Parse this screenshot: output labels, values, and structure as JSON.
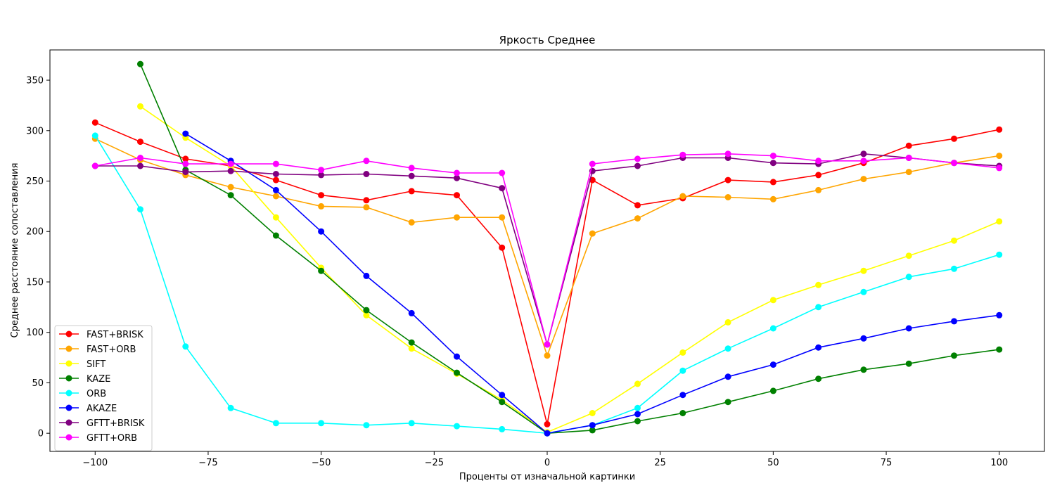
{
  "chart_data": {
    "type": "line",
    "title": "Яркость Среднее",
    "xlabel": "Проценты от изначальной картинки",
    "ylabel": "Среднее расстояние сопоставления",
    "xlim": [
      -110,
      110
    ],
    "ylim": [
      -18,
      380
    ],
    "xticks": [
      -100,
      -75,
      -50,
      -25,
      0,
      25,
      50,
      75,
      100
    ],
    "yticks": [
      0,
      50,
      100,
      150,
      200,
      250,
      300,
      350
    ],
    "grid": false,
    "legend_position": "lower-left",
    "x": [
      -100,
      -90,
      -80,
      -70,
      -60,
      -50,
      -40,
      -30,
      -20,
      -10,
      0,
      10,
      20,
      30,
      40,
      50,
      60,
      70,
      80,
      90,
      100
    ],
    "series": [
      {
        "name": "FAST+BRISK",
        "color": "#ff0000",
        "values": [
          308,
          289,
          272,
          265,
          251,
          236,
          231,
          240,
          236,
          184,
          9,
          251,
          226,
          233,
          251,
          249,
          256,
          268,
          285,
          292,
          301
        ]
      },
      {
        "name": "FAST+ORB",
        "color": "#ffa500",
        "values": [
          292,
          271,
          256,
          244,
          235,
          225,
          224,
          209,
          214,
          214,
          77,
          198,
          213,
          235,
          234,
          232,
          241,
          252,
          259,
          268,
          275
        ]
      },
      {
        "name": "SIFT",
        "color": "#ffff00",
        "values": [
          null,
          324,
          293,
          265,
          214,
          164,
          117,
          84,
          59,
          33,
          1,
          20,
          49,
          80,
          110,
          132,
          147,
          161,
          176,
          191,
          210
        ]
      },
      {
        "name": "KAZE",
        "color": "#008000",
        "values": [
          null,
          366,
          261,
          236,
          196,
          161,
          122,
          90,
          60,
          31,
          0,
          3,
          12,
          20,
          31,
          42,
          54,
          63,
          69,
          77,
          83
        ]
      },
      {
        "name": "ORB",
        "color": "#00ffff",
        "values": [
          295,
          222,
          86,
          25,
          10,
          10,
          8,
          10,
          7,
          4,
          0,
          8,
          25,
          62,
          84,
          104,
          125,
          140,
          155,
          163,
          177
        ]
      },
      {
        "name": "AKAZE",
        "color": "#0000ff",
        "values": [
          null,
          null,
          297,
          270,
          241,
          200,
          156,
          119,
          76,
          38,
          0,
          8,
          19,
          38,
          56,
          68,
          85,
          94,
          104,
          111,
          117
        ]
      },
      {
        "name": "GFTT+BRISK",
        "color": "#800080",
        "values": [
          265,
          265,
          259,
          260,
          257,
          256,
          257,
          255,
          253,
          243,
          88,
          260,
          265,
          273,
          273,
          268,
          267,
          277,
          273,
          268,
          265
        ]
      },
      {
        "name": "GFTT+ORB",
        "color": "#ff00ff",
        "values": [
          265,
          273,
          267,
          267,
          267,
          261,
          270,
          263,
          258,
          258,
          88,
          267,
          272,
          276,
          277,
          275,
          270,
          270,
          273,
          268,
          263
        ]
      }
    ]
  }
}
